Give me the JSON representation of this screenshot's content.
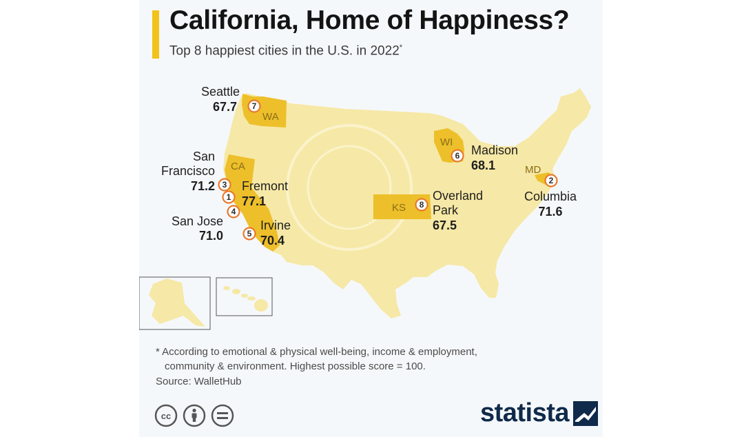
{
  "header": {
    "title": "California, Home of Happiness?",
    "subtitle": "Top 8 happiest cities in the U.S. in 2022",
    "subtitle_marker": "*"
  },
  "colors": {
    "accent": "#f2c21a",
    "us_land": "#f6e8a6",
    "highlight_state": "#edbf2a",
    "rank_ring": "#e8792c",
    "brand": "#0f2a4a"
  },
  "states": [
    {
      "abbr": "WA",
      "name": "Washington"
    },
    {
      "abbr": "CA",
      "name": "California"
    },
    {
      "abbr": "WI",
      "name": "Wisconsin"
    },
    {
      "abbr": "KS",
      "name": "Kansas"
    },
    {
      "abbr": "MD",
      "name": "Maryland"
    }
  ],
  "cities": [
    {
      "rank": "1",
      "name_lines": [
        "Fremont"
      ],
      "score": "77.1",
      "state": "CA"
    },
    {
      "rank": "2",
      "name_lines": [
        "Columbia"
      ],
      "score": "71.6",
      "state": "MD"
    },
    {
      "rank": "3",
      "name_lines": [
        "San",
        "Francisco"
      ],
      "score": "71.2",
      "state": "CA"
    },
    {
      "rank": "4",
      "name_lines": [
        "San Jose"
      ],
      "score": "71.0",
      "state": "CA"
    },
    {
      "rank": "5",
      "name_lines": [
        "Irvine"
      ],
      "score": "70.4",
      "state": "CA"
    },
    {
      "rank": "6",
      "name_lines": [
        "Madison"
      ],
      "score": "68.1",
      "state": "WI"
    },
    {
      "rank": "7",
      "name_lines": [
        "Seattle"
      ],
      "score": "67.7",
      "state": "WA"
    },
    {
      "rank": "8",
      "name_lines": [
        "Overland",
        "Park"
      ],
      "score": "67.5",
      "state": "KS"
    }
  ],
  "footnote": {
    "line1": "* According to emotional & physical well-being, income & employment,",
    "line2": "community & environment. Highest possible score = 100."
  },
  "source": "Source: WalletHub",
  "license_icons": [
    "cc-icon",
    "attribution-icon",
    "no-derivatives-icon"
  ],
  "brand": {
    "wordmark": "statista",
    "icon": "statista-logo-icon"
  }
}
